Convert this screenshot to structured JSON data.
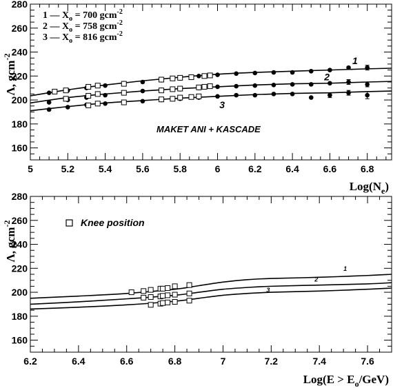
{
  "chart_data": [
    {
      "type": "scatter",
      "xlim": [
        5,
        6.93
      ],
      "ylim": [
        150,
        280
      ],
      "xticks": [
        5,
        5.2,
        5.4,
        5.6,
        5.8,
        6,
        6.2,
        6.4,
        6.6,
        6.8
      ],
      "xtick_labels": [
        "5",
        "5.2",
        "5.4",
        "5.6",
        "5.8",
        "6",
        "6.2",
        "6.4",
        "6.6",
        "6.8"
      ],
      "yticks": [
        160,
        180,
        200,
        220,
        240,
        260,
        280
      ],
      "ytick_labels": [
        "160",
        "180",
        "200",
        "220",
        "240",
        "260",
        "280"
      ],
      "ylabel": {
        "main": "Λ, gcm",
        "sup": "-2"
      },
      "xlabel": {
        "main": "Log(N",
        "sub": "e",
        "close": ")"
      },
      "legend": [
        {
          "text": "1 — X",
          "sub": "o",
          "text2": " =  700 gcm",
          "sup": "-2"
        },
        {
          "text": "2 — X",
          "sub": "o",
          "text2": " =  758 gcm",
          "sup": "-2"
        },
        {
          "text": "3 — X",
          "sub": "o",
          "text2": " =  816 gcm",
          "sup": "-2"
        }
      ],
      "annotation": "MAKET ANI + KASCADE",
      "series": [
        {
          "name": "1",
          "curve": {
            "x": [
              5.0,
              5.2,
              5.4,
              5.6,
              5.8,
              6.0,
              6.2,
              6.4,
              6.6,
              6.8,
              6.93
            ],
            "y": [
              203.5,
              208.5,
              212.5,
              216,
              219,
              221.5,
              223,
              224,
              225,
              226,
              226.5
            ]
          },
          "dots": {
            "x": [
              5.1,
              5.2,
              5.3,
              5.4,
              5.5,
              5.6,
              5.7,
              5.8,
              5.9,
              6.0,
              6.1,
              6.2,
              6.3,
              6.4,
              6.5,
              6.6,
              6.7,
              6.8
            ],
            "y": [
              206,
              208,
              210,
              212,
              214,
              215,
              216.5,
              218,
              220,
              221,
              222,
              222.5,
              223,
              223,
              224,
              225,
              227,
              227
            ],
            "err": [
              0,
              0,
              0,
              0,
              0,
              0,
              0,
              0,
              0,
              0,
              0,
              0,
              0,
              0,
              0,
              0,
              0,
              2
            ]
          },
          "squares": {
            "x": [
              5.13,
              5.19,
              5.31,
              5.36,
              5.5,
              5.7,
              5.76,
              5.8,
              5.86,
              5.93,
              5.96
            ],
            "y": [
              207,
              208,
              211,
              212,
              213.5,
              217,
              218,
              218.5,
              219,
              220,
              220.5
            ]
          }
        },
        {
          "name": "2",
          "curve": {
            "x": [
              5.0,
              5.2,
              5.4,
              5.6,
              5.8,
              6.0,
              6.2,
              6.4,
              6.6,
              6.8,
              6.93
            ],
            "y": [
              197.5,
              202,
              205,
              207.5,
              209.5,
              211,
              212.5,
              213.5,
              214,
              215,
              215.5
            ]
          },
          "dots": {
            "x": [
              5.1,
              5.2,
              5.3,
              5.4,
              5.5,
              5.6,
              5.7,
              5.8,
              5.9,
              6.0,
              6.1,
              6.2,
              6.3,
              6.4,
              6.5,
              6.6,
              6.7,
              6.8
            ],
            "y": [
              198,
              200,
              202,
              204,
              206,
              207.5,
              208.5,
              209,
              210,
              211,
              211.5,
              212,
              212.5,
              213,
              213,
              214,
              215,
              213
            ],
            "err": [
              0,
              0,
              0,
              0,
              0,
              0,
              0,
              0,
              0,
              0,
              0,
              0,
              0,
              0,
              0,
              0,
              2,
              2
            ]
          },
          "squares": {
            "x": [
              5.19,
              5.31,
              5.36,
              5.5,
              5.7,
              5.76,
              5.8,
              5.9,
              5.93,
              5.96
            ],
            "y": [
              201,
              203.5,
              205,
              206,
              208,
              209,
              209.5,
              210.5,
              211,
              211.5
            ]
          }
        },
        {
          "name": "3",
          "curve": {
            "x": [
              5.0,
              5.2,
              5.4,
              5.6,
              5.8,
              6.0,
              6.2,
              6.4,
              6.6,
              6.8,
              6.93
            ],
            "y": [
              191,
              194.5,
              197.5,
              199.5,
              201.5,
              203,
              204.5,
              205.5,
              206,
              207,
              207.5
            ]
          },
          "dots": {
            "x": [
              5.1,
              5.2,
              5.3,
              5.4,
              5.5,
              5.6,
              5.7,
              5.8,
              5.9,
              6.0,
              6.1,
              6.2,
              6.3,
              6.4,
              6.5,
              6.6,
              6.7,
              6.8
            ],
            "y": [
              192,
              194,
              196,
              197,
              198,
              199,
              200,
              201,
              202,
              203,
              204,
              204,
              205,
              205,
              202,
              204,
              206,
              204
            ],
            "err": [
              0,
              0,
              0,
              0,
              0,
              0,
              0,
              0,
              0,
              0,
              0,
              0,
              0,
              0,
              0,
              2,
              2,
              3
            ]
          },
          "squares": {
            "x": [
              5.31,
              5.36,
              5.5,
              5.7,
              5.76,
              5.8,
              5.86,
              5.9
            ],
            "y": [
              195.5,
              197,
              198,
              200.5,
              201,
              202,
              202.5,
              203
            ]
          }
        }
      ],
      "curve_labels": [
        {
          "text": "1",
          "x": 6.72,
          "y": 230
        },
        {
          "text": "2",
          "x": 6.57,
          "y": 216.5
        },
        {
          "text": "3",
          "x": 6.01,
          "y": 193
        }
      ]
    },
    {
      "type": "line",
      "xlim": [
        6.2,
        7.7
      ],
      "ylim": [
        150,
        280
      ],
      "xticks": [
        6.2,
        6.4,
        6.6,
        6.8,
        7.0,
        7.2,
        7.4,
        7.6
      ],
      "xtick_labels": [
        "6.2",
        "6.4",
        "6.6",
        "6.8",
        "7",
        "7.2",
        "7.4",
        "7.6"
      ],
      "yticks": [
        160,
        180,
        200,
        220,
        240,
        260,
        280
      ],
      "ytick_labels": [
        "160",
        "180",
        "200",
        "220",
        "240",
        "260",
        "280"
      ],
      "ylabel": {
        "main": "Λ, gcm",
        "sup": "-2"
      },
      "xlabel": {
        "main": "Log(E > E",
        "sub": "o",
        "close": "/GeV)"
      },
      "legend": [
        {
          "text": "Knee position"
        }
      ],
      "series": [
        {
          "name": "1",
          "curve": {
            "x": [
              6.2,
              6.4,
              6.6,
              6.8,
              6.9,
              7.0,
              7.1,
              7.2,
              7.4,
              7.6,
              7.7
            ],
            "y": [
              195,
              196.8,
              199,
              202.5,
              205.5,
              208.5,
              210.5,
              211.5,
              212.5,
              214,
              215
            ]
          },
          "squares": {
            "x": [
              6.62,
              6.67,
              6.7,
              6.74,
              6.75,
              6.77,
              6.8,
              6.86
            ],
            "y": [
              200,
              201,
              202,
              203,
              203,
              203.5,
              205,
              206
            ]
          }
        },
        {
          "name": "2",
          "curve": {
            "x": [
              6.2,
              6.4,
              6.6,
              6.8,
              6.9,
              7.0,
              7.1,
              7.2,
              7.4,
              7.6,
              7.7
            ],
            "y": [
              190,
              192,
              194.5,
              197.5,
              200,
              202.5,
              204,
              205,
              206,
              207,
              208
            ]
          },
          "squares": {
            "x": [
              6.67,
              6.7,
              6.74,
              6.75,
              6.77,
              6.8,
              6.86
            ],
            "y": [
              195.5,
              196,
              196.5,
              197,
              197.5,
              198,
              199
            ]
          }
        },
        {
          "name": "3",
          "curve": {
            "x": [
              6.2,
              6.4,
              6.6,
              6.8,
              6.9,
              7.0,
              7.1,
              7.2,
              7.4,
              7.6,
              7.7
            ],
            "y": [
              186,
              187.5,
              189.5,
              192.5,
              195,
              197.5,
              199,
              200,
              201,
              202.5,
              203.5
            ]
          },
          "squares": {
            "x": [
              6.7,
              6.74,
              6.75,
              6.77,
              6.8,
              6.86
            ],
            "y": [
              189.5,
              190.5,
              191,
              191.5,
              192,
              193
            ]
          }
        }
      ],
      "curve_labels": [
        {
          "text": "1",
          "x": 7.5,
          "y": 218
        },
        {
          "text": "2",
          "x": 7.38,
          "y": 209
        },
        {
          "text": "3",
          "x": 7.18,
          "y": 200
        }
      ]
    }
  ]
}
